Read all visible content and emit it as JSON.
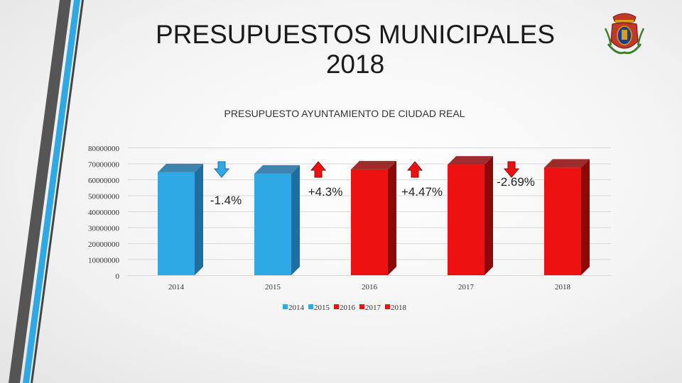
{
  "slide": {
    "title": "PRESUPUESTOS MUNICIPALES 2018"
  },
  "colors": {
    "blue": "#2fa8e6",
    "blue_dark": "#1c6fa0",
    "red": "#ee1111",
    "red_dark": "#8e0808",
    "deco_gray": "#555555",
    "deco_blue": "#2fa8e6"
  },
  "chart_data": {
    "type": "bar",
    "title": "PRESUPUESTO AYUNTAMIENTO DE CIUDAD REAL",
    "categories": [
      "2014",
      "2015",
      "2016",
      "2017",
      "2018"
    ],
    "values": [
      64500000,
      63600000,
      66300000,
      69300000,
      67400000
    ],
    "bar_colors": [
      "blue",
      "blue",
      "red",
      "red",
      "red"
    ],
    "yticks": [
      0,
      10000000,
      20000000,
      30000000,
      40000000,
      50000000,
      60000000,
      70000000,
      80000000
    ],
    "ytick_labels": [
      "0",
      "10000000",
      "20000000",
      "30000000",
      "40000000",
      "50000000",
      "60000000",
      "70000000",
      "80000000"
    ],
    "ylim": [
      0,
      80000000
    ],
    "annotations": [
      {
        "text": "-1.4%",
        "direction": "down",
        "color": "blue",
        "between": [
          "2014",
          "2015"
        ]
      },
      {
        "text": "+4.3%",
        "direction": "up",
        "color": "red",
        "between": [
          "2015",
          "2016"
        ]
      },
      {
        "text": "+4.47%",
        "direction": "up",
        "color": "red",
        "between": [
          "2016",
          "2017"
        ]
      },
      {
        "text": "-2.69%",
        "direction": "down",
        "color": "red",
        "between": [
          "2017",
          "2018"
        ]
      }
    ],
    "legend": [
      "2014",
      "2015",
      "2016",
      "2017",
      "2018"
    ],
    "legend_position": "bottom",
    "grid": true
  }
}
